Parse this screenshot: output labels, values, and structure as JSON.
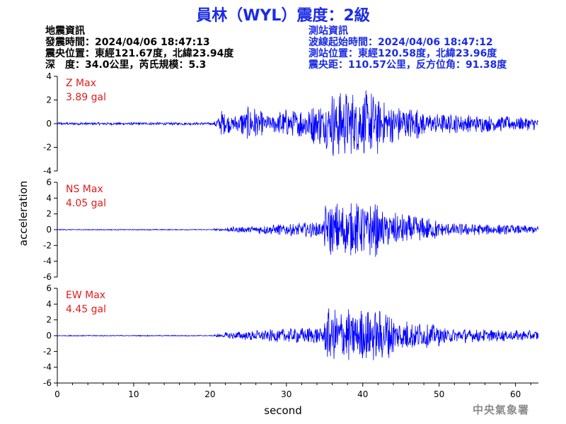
{
  "title": "員林（WYL）震度：2級",
  "left_info": {
    "heading": "地震資訊",
    "origin_time": "發震時間：2024/04/06 18:47:13",
    "epicenter": "震央位置：東經121.67度，北緯23.94度",
    "depth_mag": "深　度：34.0公里，芮氏規模：5.3"
  },
  "right_info": {
    "heading": "測站資訊",
    "wave_start": "波線起始時間：2024/04/06 18:47:12",
    "station_loc": "測站位置：東經120.58度，北緯23.96度",
    "distance": "震央距：110.57公里，反方位角：91.38度"
  },
  "watermark": "中央氣象署",
  "chart_data": {
    "type": "line",
    "xlabel": "second",
    "ylabel": "acceleration",
    "xlim": [
      0,
      63
    ],
    "x_ticks": [
      "0",
      "10",
      "20",
      "30",
      "40",
      "50",
      "60"
    ],
    "line_color": "#0000ff",
    "panels": [
      {
        "name": "Z Max",
        "max_label": "3.89 gal",
        "ylim": [
          -4,
          4
        ],
        "y_ticks": [
          "4",
          "2",
          "0",
          "-2",
          "-4"
        ]
      },
      {
        "name": "NS Max",
        "max_label": "4.05 gal",
        "ylim": [
          -6,
          6
        ],
        "y_ticks": [
          "6",
          "4",
          "2",
          "0",
          "-2",
          "-4",
          "-6"
        ]
      },
      {
        "name": "EW Max",
        "max_label": "4.45 gal",
        "ylim": [
          -6,
          6
        ],
        "y_ticks": [
          "6",
          "4",
          "2",
          "0",
          "-2",
          "-4",
          "-6"
        ]
      }
    ]
  }
}
